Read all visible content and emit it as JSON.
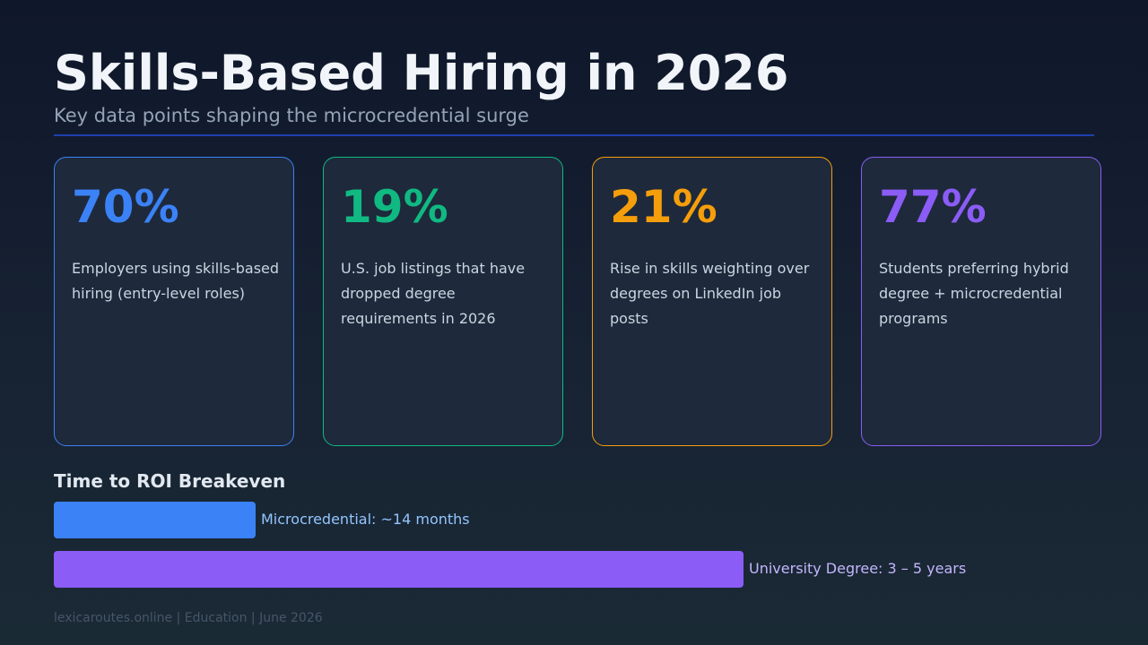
{
  "header": {
    "title": "Skills-Based Hiring in 2026",
    "subtitle": "Key data points shaping the microcredential surge"
  },
  "stat_cards": [
    {
      "value": "70%",
      "description": "Employers using skills-based hiring (entry-level roles)",
      "color": "#3b82f6"
    },
    {
      "value": "19%",
      "description": "U.S. job listings that have dropped degree requirements in 2026",
      "color": "#10b981"
    },
    {
      "value": "21%",
      "description": "Rise in skills weighting over degrees on LinkedIn job posts",
      "color": "#f59e0b"
    },
    {
      "value": "77%",
      "description": "Students preferring hybrid degree + microcredential programs",
      "color": "#8b5cf6"
    }
  ],
  "roi": {
    "heading": "Time to ROI Breakeven"
  },
  "chart_data": {
    "type": "bar",
    "title": "Time to ROI Breakeven",
    "orientation": "horizontal",
    "bars": [
      {
        "label": "Microcredential: ~14 months",
        "months": 14,
        "color": "#3b82f6",
        "label_color": "#93c5fd"
      },
      {
        "label": "University Degree: 3 – 5 years",
        "months": 48,
        "color": "#8b5cf6",
        "label_color": "#c4b5fd"
      }
    ]
  },
  "footer": {
    "text": "lexicaroutes.online  |  Education  |  June 2026"
  }
}
